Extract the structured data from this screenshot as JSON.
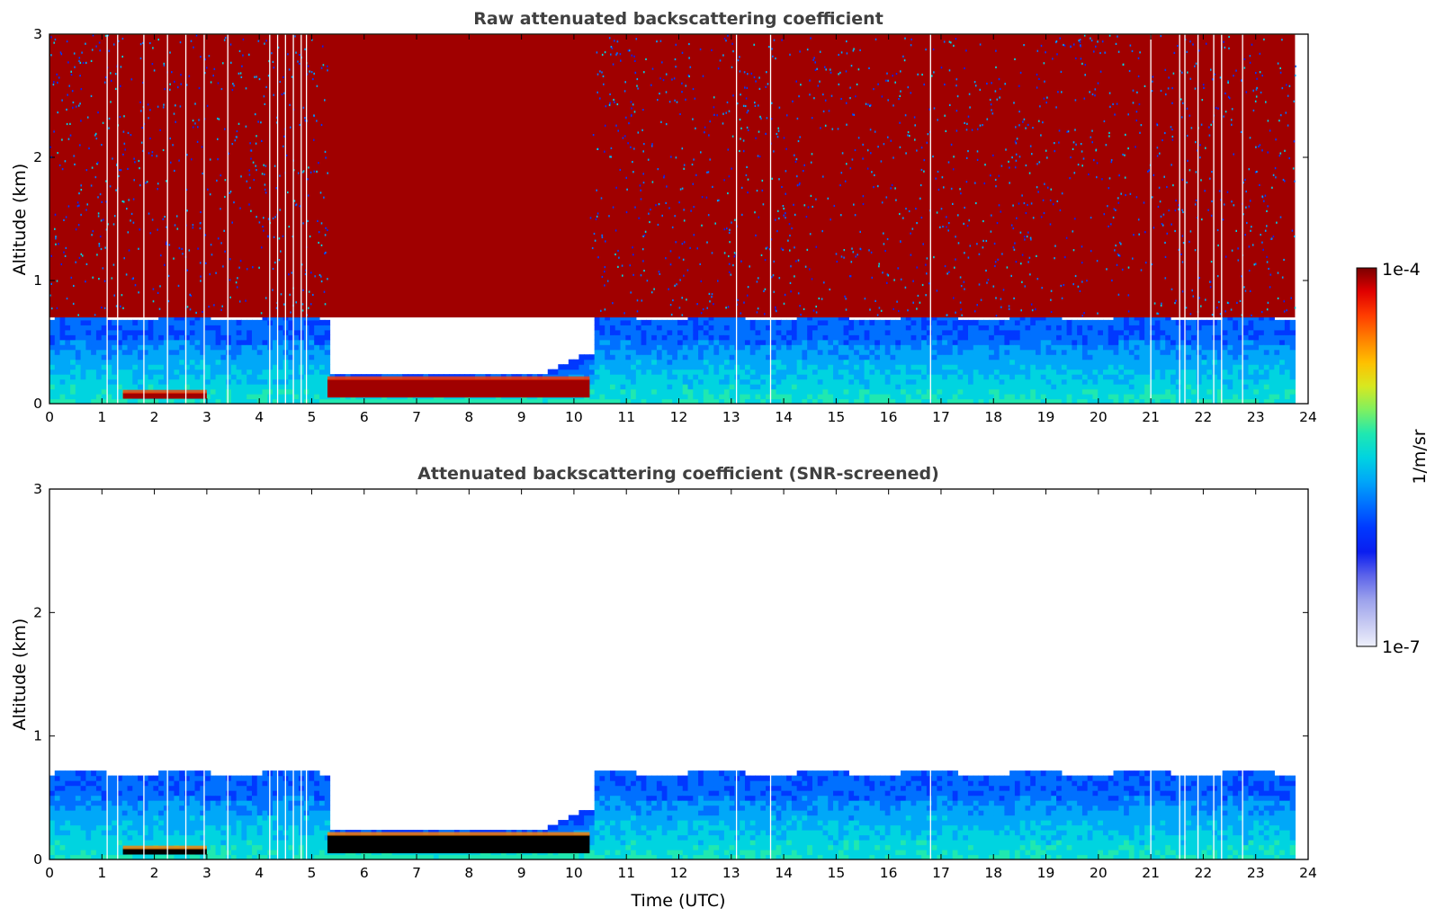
{
  "chart_data": [
    {
      "type": "heatmap",
      "title": "Raw attenuated backscattering coefficient",
      "xlabel": "",
      "ylabel": "Altitude (km)",
      "xlim": [
        0,
        24
      ],
      "ylim": [
        0,
        3
      ],
      "xticks": [
        "0",
        "1",
        "2",
        "3",
        "4",
        "5",
        "6",
        "7",
        "8",
        "9",
        "10",
        "11",
        "12",
        "13",
        "14",
        "15",
        "16",
        "17",
        "18",
        "19",
        "20",
        "21",
        "22",
        "23",
        "24"
      ],
      "yticks": [
        "0",
        "1",
        "2",
        "3"
      ],
      "data_end_hour": 23.75,
      "layers": [
        {
          "name": "boundary layer aerosol",
          "x_range": [
            0,
            23.75
          ],
          "z_top_km": 0.7,
          "level": "moderate"
        },
        {
          "name": "fog/low cloud",
          "x_range": [
            5.3,
            10.3
          ],
          "z_range_km": [
            0.05,
            0.2
          ],
          "level": "high"
        },
        {
          "name": "low cloud",
          "x_range": [
            1.4,
            3.0
          ],
          "z_range_km": [
            0.04,
            0.09
          ],
          "level": "high"
        },
        {
          "name": "noise above boundary layer",
          "x_range": [
            0,
            23.75
          ],
          "z_range_km": [
            0.7,
            3.0
          ],
          "level": "noise"
        }
      ],
      "data_gaps_hours": [
        1.1,
        1.3,
        1.8,
        2.25,
        2.6,
        2.95,
        3.4,
        4.2,
        4.35,
        4.5,
        4.65,
        4.8,
        4.9,
        13.1,
        13.75,
        16.8,
        21.0,
        21.55,
        21.65,
        21.9,
        22.2,
        22.35,
        22.75
      ]
    },
    {
      "type": "heatmap",
      "title": "Attenuated backscattering coefficient (SNR-screened)",
      "xlabel": "Time (UTC)",
      "ylabel": "Altitude (km)",
      "xlim": [
        0,
        24
      ],
      "ylim": [
        0,
        3
      ],
      "xticks": [
        "0",
        "1",
        "2",
        "3",
        "4",
        "5",
        "6",
        "7",
        "8",
        "9",
        "10",
        "11",
        "12",
        "13",
        "14",
        "15",
        "16",
        "17",
        "18",
        "19",
        "20",
        "21",
        "22",
        "23",
        "24"
      ],
      "yticks": [
        "0",
        "1",
        "2",
        "3"
      ],
      "data_end_hour": 23.75,
      "layers": [
        {
          "name": "boundary layer aerosol",
          "x_range": [
            0,
            23.75
          ],
          "z_top_km": 0.68,
          "level": "moderate"
        },
        {
          "name": "fog/low cloud",
          "x_range": [
            5.3,
            10.3
          ],
          "z_range_km": [
            0.05,
            0.2
          ],
          "level": "saturated"
        },
        {
          "name": "low cloud",
          "x_range": [
            1.4,
            3.0
          ],
          "z_range_km": [
            0.04,
            0.09
          ],
          "level": "saturated"
        }
      ],
      "data_gaps_hours": [
        1.1,
        1.3,
        1.8,
        2.25,
        2.6,
        2.95,
        3.4,
        4.2,
        4.35,
        4.5,
        4.65,
        4.8,
        4.9,
        13.1,
        13.75,
        16.8,
        21.0,
        21.55,
        21.65,
        21.9,
        22.2,
        22.35,
        22.75
      ]
    }
  ],
  "colorbar": {
    "max_label": "1e-4",
    "min_label": "1e-7",
    "unit_label": "1/m/sr",
    "scale": "log",
    "colors": [
      "#eef0fb",
      "#c5c8f2",
      "#9aa0ec",
      "#5b62ea",
      "#0a1ef0",
      "#0038ff",
      "#0070ff",
      "#00a8f8",
      "#00d4e0",
      "#20e8b0",
      "#7ff060",
      "#d8e820",
      "#ffc000",
      "#ff8000",
      "#ff3c00",
      "#e00000",
      "#7a0000"
    ]
  },
  "colors": {
    "title": "#404040",
    "saturated": "#000000"
  }
}
